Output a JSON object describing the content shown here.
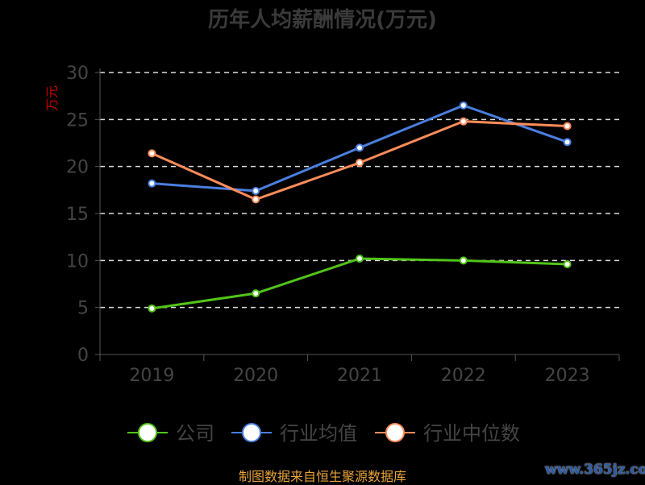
{
  "chart_data": {
    "type": "line",
    "title": "历年人均薪酬情况(万元)",
    "ylabel": "万元",
    "categories": [
      "2019",
      "2020",
      "2021",
      "2022",
      "2023"
    ],
    "ylim": [
      0,
      30
    ],
    "yticks": [
      0,
      5,
      10,
      15,
      20,
      25,
      30
    ],
    "grid": true,
    "legend_placement": "bottom",
    "series": [
      {
        "name": "公司",
        "color": "#52c41a",
        "values": [
          4.9,
          6.5,
          10.2,
          10.0,
          9.6
        ]
      },
      {
        "name": "行业均值",
        "color": "#4a7fe0",
        "values": [
          18.2,
          17.4,
          22.0,
          26.5,
          22.6
        ]
      },
      {
        "name": "行业中位数",
        "color": "#ff8c5a",
        "values": [
          21.4,
          16.5,
          20.4,
          24.8,
          24.3
        ]
      }
    ]
  },
  "source": "制图数据来自恒生聚源数据库",
  "watermark": "www.365jz.com"
}
